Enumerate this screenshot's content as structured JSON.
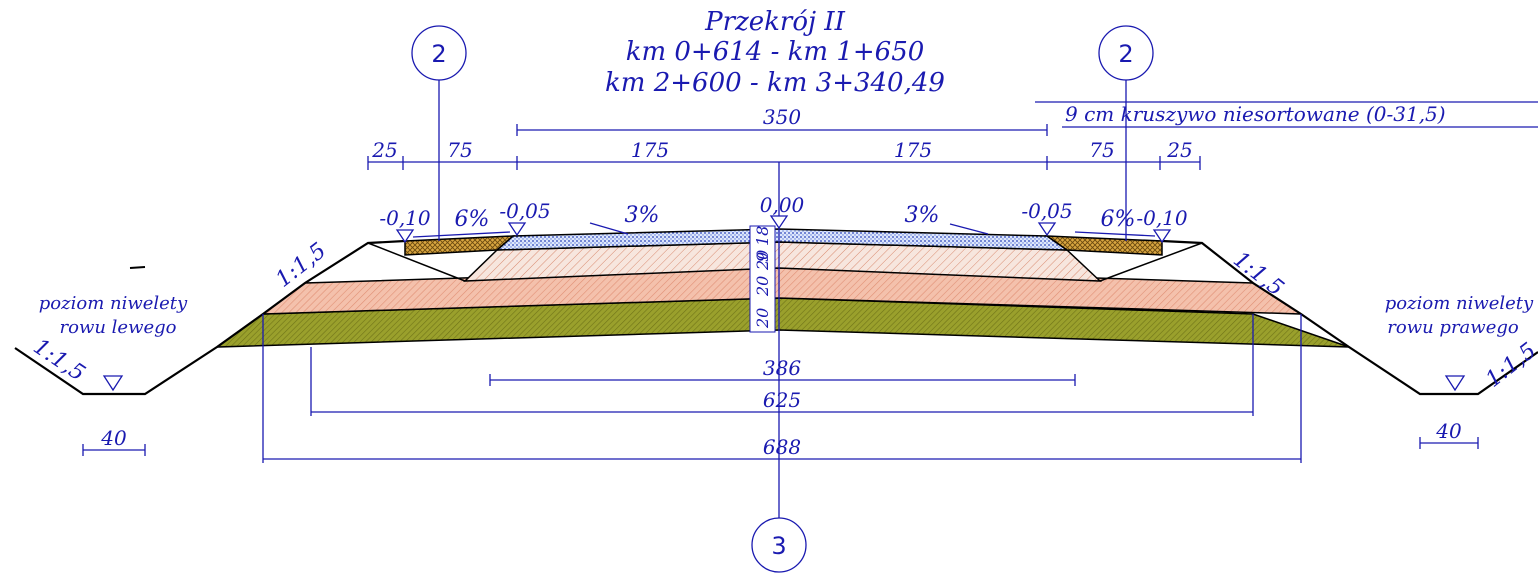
{
  "title": {
    "line1": "Przekrój II",
    "line2": "km 0+614 - km 1+650",
    "line3": "km 2+600 - km 3+340,49"
  },
  "callouts": {
    "left": "2",
    "right": "2",
    "bottom": "3"
  },
  "note": "9 cm kruszywo niesortowane (0-31,5)",
  "dimensions": {
    "top_350": "350",
    "left_25": "25",
    "left_75": "75",
    "left_175": "175",
    "right_175": "175",
    "right_75": "75",
    "right_25": "25",
    "bottom_386": "386",
    "bottom_625": "625",
    "bottom_688": "688",
    "ditch_left_40": "40",
    "ditch_right_40": "40"
  },
  "elevations": {
    "center": "0,00",
    "left_edge": "-0,05",
    "left_shoulder": "-0,10",
    "right_edge": "-0,05",
    "right_shoulder": "-0,10"
  },
  "slopes": {
    "left_pavement": "3%",
    "right_pavement": "3%",
    "left_shoulder": "6%",
    "right_shoulder": "6%",
    "embankment_left": "1:1,5",
    "embankment_right": "1:1,5",
    "ditch_left": "1:1,5",
    "ditch_right": "1:1,5"
  },
  "layer_thickness": {
    "l1": "9",
    "l2": "18",
    "l3": "20",
    "l4": "20",
    "l5": "20"
  },
  "ditch_labels": {
    "left_line1": "poziom niwelety",
    "left_line2": "rowu lewego",
    "right_line1": "poziom niwelety",
    "right_line2": "rowu prawego"
  },
  "colors": {
    "ink": "#1a1ab0",
    "pavement": "#8aa0d8",
    "subbase_hatch": "#e8b4a0",
    "sand_layer": "#f2b9a3",
    "olive_layer": "#8f9424",
    "shoulder": "#c8922a"
  }
}
